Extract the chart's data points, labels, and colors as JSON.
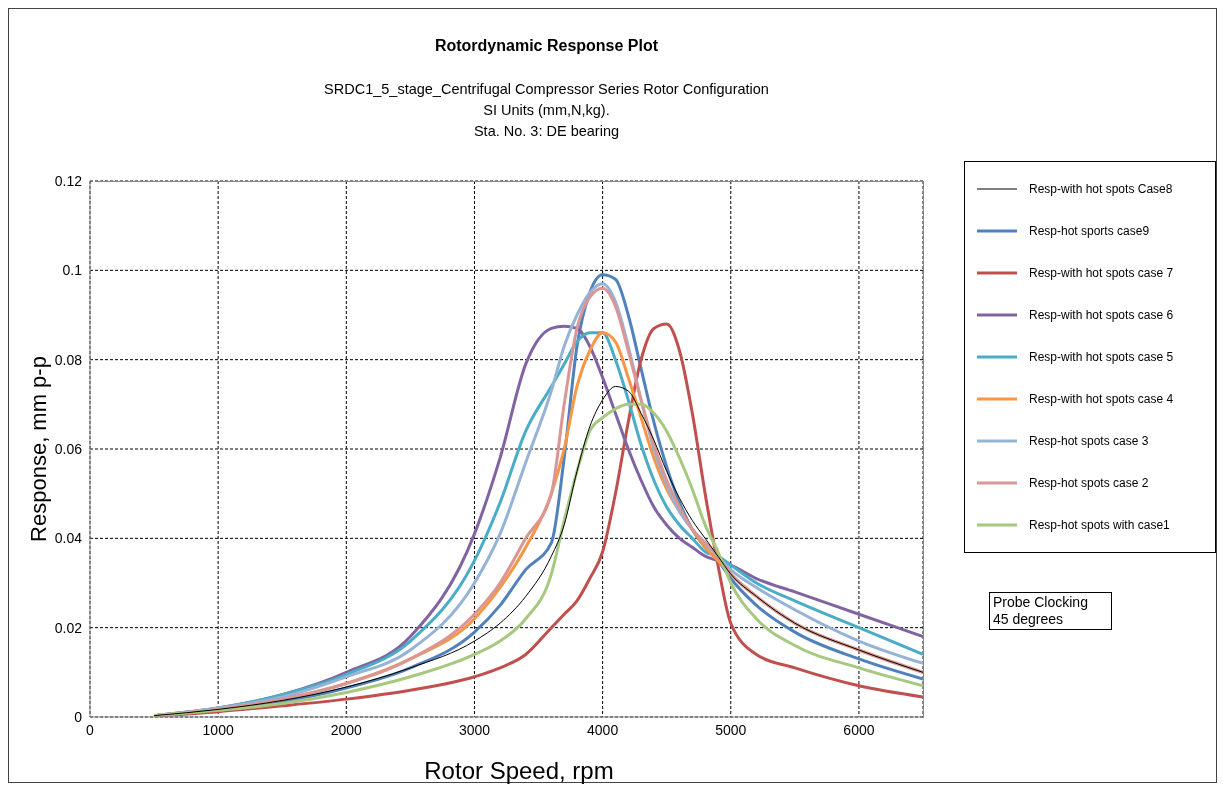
{
  "chart_data": {
    "type": "line",
    "title": "Rotordynamic Response  Plot",
    "subtitle": "SRDC1_5_stage_Centrifugal Compressor Series Rotor Configuration\nSI Units (mm,N,kg).\nSta. No. 3: DE bearing",
    "xlabel": "Rotor Speed, rpm",
    "ylabel": "Response, mm p-p",
    "annotations": [
      "Probe Clocking\n45 degrees"
    ],
    "x": [
      500,
      1000,
      1500,
      2000,
      2500,
      3000,
      3200,
      3400,
      3600,
      3700,
      3800,
      3900,
      4000,
      4100,
      4200,
      4300,
      4400,
      4500,
      4600,
      4700,
      4800,
      4900,
      5000,
      5200,
      5500,
      6000,
      6500
    ],
    "series": [
      {
        "name": "Resp-with hot spots Case8",
        "color": "#000000",
        "values": [
          0.0003,
          0.0017,
          0.0037,
          0.0067,
          0.011,
          0.017,
          0.021,
          0.027,
          0.036,
          0.043,
          0.055,
          0.065,
          0.071,
          0.074,
          0.073,
          0.068,
          0.062,
          0.055,
          0.049,
          0.044,
          0.04,
          0.036,
          0.032,
          0.027,
          0.021,
          0.015,
          0.01
        ]
      },
      {
        "name": "Resp-hot sports case9",
        "color": "#4f81bd",
        "values": [
          0.0003,
          0.0016,
          0.0035,
          0.0065,
          0.011,
          0.019,
          0.025,
          0.033,
          0.039,
          0.058,
          0.083,
          0.095,
          0.099,
          0.098,
          0.09,
          0.078,
          0.066,
          0.056,
          0.048,
          0.042,
          0.038,
          0.035,
          0.031,
          0.025,
          0.019,
          0.013,
          0.0085
        ]
      },
      {
        "name": "Resp-with hot spots case 7",
        "color": "#c0504d",
        "values": [
          0.0002,
          0.0012,
          0.0025,
          0.004,
          0.006,
          0.009,
          0.011,
          0.014,
          0.02,
          0.023,
          0.026,
          0.031,
          0.037,
          0.05,
          0.066,
          0.08,
          0.087,
          0.088,
          0.082,
          0.068,
          0.05,
          0.034,
          0.021,
          0.014,
          0.011,
          0.007,
          0.0045
        ]
      },
      {
        "name": "Resp-with hot spots case 6",
        "color": "#8064a2",
        "values": [
          0.0003,
          0.002,
          0.005,
          0.01,
          0.018,
          0.041,
          0.058,
          0.079,
          0.087,
          0.0875,
          0.087,
          0.083,
          0.076,
          0.068,
          0.06,
          0.053,
          0.047,
          0.043,
          0.04,
          0.038,
          0.036,
          0.035,
          0.034,
          0.031,
          0.028,
          0.023,
          0.018
        ]
      },
      {
        "name": "Resp-with hot spots case 5",
        "color": "#4bacc6",
        "values": [
          0.0003,
          0.002,
          0.005,
          0.0095,
          0.017,
          0.035,
          0.048,
          0.064,
          0.074,
          0.079,
          0.084,
          0.086,
          0.086,
          0.08,
          0.071,
          0.061,
          0.053,
          0.047,
          0.043,
          0.04,
          0.037,
          0.036,
          0.034,
          0.03,
          0.026,
          0.02,
          0.014
        ]
      },
      {
        "name": "Resp-with hot spots case 4",
        "color": "#f79646",
        "values": [
          0.0003,
          0.0018,
          0.004,
          0.0075,
          0.013,
          0.022,
          0.029,
          0.038,
          0.05,
          0.06,
          0.074,
          0.082,
          0.086,
          0.084,
          0.076,
          0.067,
          0.058,
          0.051,
          0.046,
          0.042,
          0.038,
          0.035,
          0.032,
          0.027,
          0.021,
          0.015,
          0.01
        ]
      },
      {
        "name": "Resp-hot spots case 3",
        "color": "#95b3d7",
        "values": [
          0.0003,
          0.002,
          0.0045,
          0.009,
          0.015,
          0.03,
          0.041,
          0.057,
          0.073,
          0.083,
          0.09,
          0.095,
          0.097,
          0.093,
          0.083,
          0.071,
          0.06,
          0.052,
          0.046,
          0.042,
          0.039,
          0.036,
          0.033,
          0.029,
          0.024,
          0.017,
          0.012
        ]
      },
      {
        "name": "Resp-hot spots case 2",
        "color": "#d99694",
        "values": [
          0.0003,
          0.0018,
          0.004,
          0.0075,
          0.013,
          0.023,
          0.03,
          0.04,
          0.05,
          0.07,
          0.087,
          0.094,
          0.096,
          0.092,
          0.082,
          0.071,
          0.061,
          0.053,
          0.047,
          0.042,
          0.039,
          0.036,
          0.032,
          0.027,
          0.021,
          0.015,
          0.01
        ]
      },
      {
        "name": "Resp-hot spots with case1",
        "color": "#a6c97f",
        "values": [
          0.0003,
          0.0015,
          0.003,
          0.0055,
          0.009,
          0.014,
          0.017,
          0.022,
          0.032,
          0.044,
          0.055,
          0.064,
          0.067,
          0.069,
          0.07,
          0.07,
          0.068,
          0.064,
          0.058,
          0.051,
          0.043,
          0.037,
          0.03,
          0.022,
          0.016,
          0.011,
          0.007
        ]
      }
    ],
    "xlim": [
      0,
      6500
    ],
    "xticks": [
      0,
      1000,
      2000,
      3000,
      4000,
      5000,
      6000
    ],
    "ylim": [
      0,
      0.12
    ],
    "yticks": [
      0,
      0.02,
      0.04,
      0.06,
      0.08,
      0.1,
      0.12
    ],
    "grid": true,
    "legend": "right",
    "marker": "none",
    "line_style": "solid"
  }
}
